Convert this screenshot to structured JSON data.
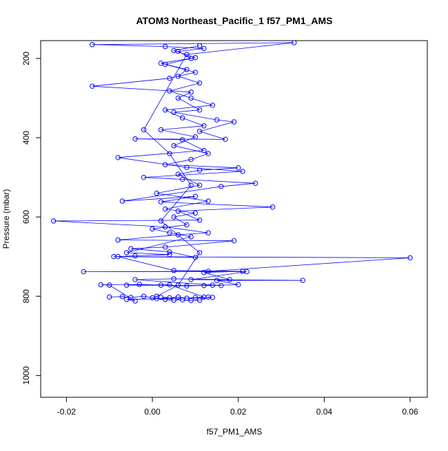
{
  "chart_data": {
    "type": "line",
    "title": "ATOM3 Northeast_Pacific_1 f57_PM1_AMS",
    "xlabel": "f57_PM1_AMS",
    "ylabel": "Pressure (mbar)",
    "xlim": [
      -0.026,
      0.064
    ],
    "ylim": [
      1055,
      155
    ],
    "y_reversed": true,
    "grid": false,
    "marker": "open-circle",
    "color": "#0000ff",
    "x_ticks": [
      -0.02,
      0.0,
      0.02,
      0.04,
      0.06
    ],
    "x_tick_labels": [
      "-0.02",
      "0.00",
      "0.02",
      "0.04",
      "0.06"
    ],
    "y_ticks": [
      200,
      400,
      600,
      800,
      1000
    ],
    "y_tick_labels": [
      "200",
      "400",
      "600",
      "800",
      "1000"
    ],
    "series": [
      {
        "values": [
          [
            0.002,
            803
          ],
          [
            0.004,
            804
          ],
          [
            0.006,
            802
          ],
          [
            0.008,
            805
          ],
          [
            0.01,
            803
          ],
          [
            0.012,
            802
          ],
          [
            0.004,
            771
          ],
          [
            -0.006,
            772
          ],
          [
            0.012,
            773
          ],
          [
            0.02,
            771
          ],
          [
            0.015,
            760
          ],
          [
            0.035,
            760
          ],
          [
            0.009,
            758
          ],
          [
            0.022,
            738
          ],
          [
            -0.016,
            738
          ],
          [
            0.013,
            737
          ],
          [
            0.06,
            703
          ],
          [
            -0.009,
            700
          ],
          [
            0.01,
            702
          ],
          [
            0.004,
            688
          ],
          [
            -0.005,
            680
          ],
          [
            0.003,
            676
          ],
          [
            0.019,
            660
          ],
          [
            -0.008,
            658
          ],
          [
            0.006,
            645
          ],
          [
            0.013,
            640
          ],
          [
            0.003,
            625
          ],
          [
            -0.023,
            610
          ],
          [
            0.011,
            608
          ],
          [
            0.006,
            585
          ],
          [
            0.028,
            575
          ],
          [
            0.002,
            562
          ],
          [
            0.01,
            548
          ],
          [
            -0.007,
            560
          ],
          [
            0.016,
            523
          ],
          [
            0.024,
            515
          ],
          [
            0.007,
            505
          ],
          [
            -0.002,
            500
          ],
          [
            0.021,
            485
          ],
          [
            0.008,
            475
          ],
          [
            -0.008,
            450
          ],
          [
            0.012,
            432
          ],
          [
            0.007,
            405
          ],
          [
            -0.004,
            403
          ],
          [
            0.017,
            404
          ],
          [
            0.011,
            384
          ],
          [
            0.019,
            360
          ],
          [
            0.015,
            355
          ],
          [
            0.005,
            336
          ],
          [
            0.011,
            330
          ],
          [
            0.006,
            300
          ],
          [
            0.009,
            285
          ],
          [
            -0.014,
            270
          ],
          [
            0.004,
            250
          ],
          [
            0.01,
            235
          ],
          [
            0.003,
            215
          ],
          [
            0.009,
            200
          ],
          [
            0.006,
            182
          ],
          [
            0.012,
            175
          ],
          [
            0.003,
            170
          ],
          [
            -0.014,
            165
          ],
          [
            0.033,
            160
          ],
          [
            0.008,
            190
          ],
          [
            -0.002,
            380
          ],
          [
            0.004,
            440
          ],
          [
            0.009,
            520
          ],
          [
            0.002,
            610
          ],
          [
            0.011,
            690
          ],
          [
            0.006,
            772
          ],
          [
            0.001,
            800
          ]
        ]
      },
      {
        "values": [
          [
            -0.01,
            802
          ],
          [
            -0.007,
            801
          ],
          [
            -0.005,
            803
          ],
          [
            -0.002,
            800
          ],
          [
            0.0,
            804
          ],
          [
            0.001,
            806
          ],
          [
            0.003,
            808
          ],
          [
            0.005,
            810
          ],
          [
            0.007,
            809
          ],
          [
            0.009,
            811
          ],
          [
            0.011,
            810
          ],
          [
            0.013,
            802
          ],
          [
            0.014,
            803
          ],
          [
            -0.006,
            808
          ],
          [
            -0.004,
            812
          ],
          [
            -0.01,
            772
          ],
          [
            -0.012,
            771
          ],
          [
            -0.003,
            770
          ],
          [
            0.002,
            772
          ],
          [
            0.008,
            774
          ],
          [
            0.014,
            772
          ],
          [
            0.016,
            773
          ],
          [
            -0.004,
            758
          ],
          [
            0.005,
            756
          ],
          [
            0.018,
            758
          ],
          [
            0.012,
            740
          ],
          [
            0.021,
            737
          ],
          [
            0.005,
            735
          ],
          [
            -0.008,
            700
          ],
          [
            -0.004,
            698
          ],
          [
            0.004,
            695
          ],
          [
            -0.006,
            690
          ],
          [
            0.009,
            650
          ],
          [
            0.004,
            640
          ],
          [
            0.0,
            630
          ],
          [
            0.008,
            620
          ],
          [
            0.005,
            600
          ],
          [
            0.01,
            590
          ],
          [
            0.003,
            580
          ],
          [
            0.013,
            560
          ],
          [
            0.001,
            540
          ],
          [
            0.011,
            520
          ],
          [
            0.006,
            492
          ],
          [
            0.011,
            482
          ],
          [
            0.02,
            476
          ],
          [
            0.003,
            468
          ],
          [
            0.009,
            455
          ],
          [
            0.013,
            440
          ],
          [
            0.005,
            420
          ],
          [
            0.01,
            398
          ],
          [
            0.002,
            380
          ],
          [
            0.012,
            370
          ],
          [
            0.007,
            350
          ],
          [
            0.003,
            330
          ],
          [
            0.014,
            318
          ],
          [
            0.009,
            300
          ],
          [
            0.004,
            282
          ],
          [
            0.011,
            262
          ],
          [
            0.006,
            245
          ],
          [
            0.008,
            228
          ],
          [
            0.002,
            212
          ],
          [
            0.01,
            198
          ],
          [
            0.005,
            180
          ],
          [
            0.011,
            168
          ]
        ]
      }
    ]
  }
}
